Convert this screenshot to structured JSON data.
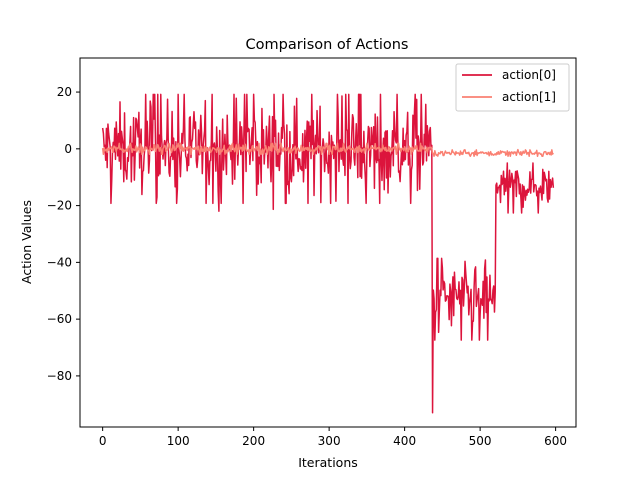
{
  "chart_data": {
    "type": "line",
    "title": "Comparison of Actions",
    "xlabel": "Iterations",
    "ylabel": "Action Values",
    "xlim": [
      -30,
      627
    ],
    "ylim": [
      -98,
      32
    ],
    "xticks": [
      0,
      100,
      200,
      300,
      400,
      500,
      600
    ],
    "yticks": [
      20,
      0,
      -20,
      -40,
      -60,
      -80
    ],
    "ytick_labels": [
      "20",
      "0",
      "−20",
      "−40",
      "−60",
      "−80"
    ],
    "grid": false,
    "legend_position": "top-right",
    "series": [
      {
        "name": "action[0]",
        "color": "#dc143c",
        "approx_segments": [
          {
            "x_start": 0,
            "x_end": 436,
            "center": 0,
            "spread": 12,
            "min": -22,
            "max": 25
          },
          {
            "x_start": 437,
            "x_end": 437,
            "value": -93
          },
          {
            "x_start": 438,
            "x_end": 520,
            "center": -53,
            "spread": 9,
            "min": -72,
            "max": -37
          },
          {
            "x_start": 521,
            "x_end": 597,
            "center": -13,
            "spread": 6,
            "min": -29,
            "max": -5
          }
        ]
      },
      {
        "name": "action[1]",
        "color": "#fa8072",
        "approx_segments": [
          {
            "x_start": 0,
            "x_end": 436,
            "center": 0,
            "spread": 1.2,
            "min": -3,
            "max": 3
          },
          {
            "x_start": 437,
            "x_end": 597,
            "center": -1.5,
            "spread": 0.7,
            "min": -3,
            "max": 0.5
          }
        ]
      }
    ]
  }
}
